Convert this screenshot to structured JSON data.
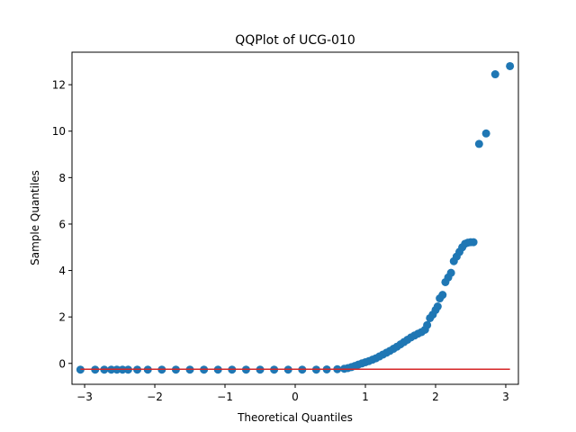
{
  "chart_data": {
    "type": "scatter",
    "title": "QQPlot of UCG-010",
    "xlabel": "Theoretical Quantiles",
    "ylabel": "Sample Quantiles",
    "xlim": [
      -3.18,
      3.18
    ],
    "ylim": [
      -0.9,
      13.4
    ],
    "xticks": [
      -3,
      -2,
      -1,
      0,
      1,
      2,
      3
    ],
    "yticks": [
      0,
      2,
      4,
      6,
      8,
      10,
      12
    ],
    "grid": false,
    "marker_color": "#1f77b4",
    "line_color": "#d62728",
    "reference_line": {
      "x": [
        -3.06,
        3.06
      ],
      "y": [
        -0.25,
        -0.25
      ]
    },
    "points": {
      "x": [
        -3.06,
        -2.85,
        -2.72,
        -2.62,
        -2.54,
        -2.46,
        -2.38,
        -2.25,
        -2.1,
        -1.9,
        -1.7,
        -1.5,
        -1.3,
        -1.1,
        -0.9,
        -0.7,
        -0.5,
        -0.3,
        -0.1,
        0.1,
        0.3,
        0.45,
        0.6,
        0.7,
        0.75,
        0.8,
        0.85,
        0.9,
        0.95,
        1.0,
        1.05,
        1.1,
        1.15,
        1.2,
        1.25,
        1.3,
        1.35,
        1.4,
        1.45,
        1.5,
        1.55,
        1.6,
        1.65,
        1.7,
        1.75,
        1.8,
        1.85,
        1.88,
        1.92,
        1.96,
        2.0,
        2.03,
        2.06,
        2.1,
        2.14,
        2.18,
        2.22,
        2.26,
        2.3,
        2.34,
        2.38,
        2.42,
        2.46,
        2.5,
        2.54,
        2.62,
        2.72,
        2.85,
        3.06
      ],
      "y": [
        -0.27,
        -0.27,
        -0.27,
        -0.27,
        -0.27,
        -0.27,
        -0.27,
        -0.27,
        -0.27,
        -0.27,
        -0.27,
        -0.27,
        -0.27,
        -0.27,
        -0.27,
        -0.27,
        -0.27,
        -0.27,
        -0.27,
        -0.27,
        -0.27,
        -0.26,
        -0.25,
        -0.23,
        -0.2,
        -0.16,
        -0.11,
        -0.05,
        0.0,
        0.05,
        0.1,
        0.16,
        0.22,
        0.3,
        0.38,
        0.46,
        0.54,
        0.63,
        0.72,
        0.82,
        0.92,
        1.02,
        1.12,
        1.2,
        1.28,
        1.35,
        1.45,
        1.65,
        1.95,
        2.1,
        2.3,
        2.45,
        2.8,
        2.95,
        3.5,
        3.7,
        3.9,
        4.4,
        4.6,
        4.8,
        5.0,
        5.15,
        5.2,
        5.22,
        5.22,
        9.45,
        9.9,
        12.45,
        12.8
      ]
    }
  }
}
